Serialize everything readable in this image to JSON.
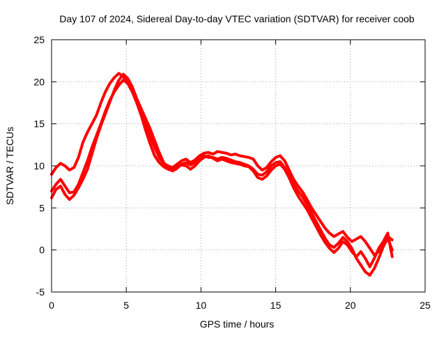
{
  "chart_data": {
    "type": "line",
    "title": "Day 107 of 2024, Sidereal Day-to-day VTEC variation (SDTVAR) for receiver coob",
    "xlabel": "GPS time / hours",
    "ylabel": "SDTVAR / TECUs",
    "xlim": [
      0,
      25
    ],
    "ylim": [
      -5,
      25
    ],
    "xticks": [
      0,
      5,
      10,
      15,
      20,
      25
    ],
    "yticks": [
      -5,
      0,
      5,
      10,
      15,
      20,
      25
    ],
    "xtick_labels": [
      "0",
      "5",
      "10",
      "15",
      "20",
      "25"
    ],
    "ytick_labels": [
      "-5",
      "0",
      "5",
      "10",
      "15",
      "20",
      "25"
    ],
    "grid": true,
    "legend": "none",
    "series_color": "#ff0000",
    "series": [
      {
        "name": "trace-1",
        "x": [
          0.0,
          0.3,
          0.6,
          0.9,
          1.2,
          1.5,
          1.8,
          2.1,
          2.4,
          2.7,
          3.0,
          3.3,
          3.6,
          3.9,
          4.2,
          4.5,
          4.8,
          5.1,
          5.4,
          5.7,
          6.0,
          6.3,
          6.6,
          6.9,
          7.2,
          7.5,
          7.8,
          8.1,
          8.4,
          8.7,
          9.0,
          9.3,
          9.6,
          9.9,
          10.2,
          10.5,
          10.8,
          11.1,
          11.4,
          11.7,
          12.0,
          12.3,
          12.6,
          12.9,
          13.2,
          13.5,
          13.8,
          14.1,
          14.4,
          14.7,
          15.0,
          15.3,
          15.6,
          15.9,
          16.2,
          16.5,
          16.8,
          17.1,
          17.4,
          17.7,
          18.0,
          18.3,
          18.6,
          18.9,
          19.2,
          19.5,
          19.8,
          20.1,
          20.4,
          20.7,
          21.0,
          21.3,
          21.6,
          21.9,
          22.2,
          22.5,
          22.8
        ],
        "y": [
          9.0,
          9.8,
          10.3,
          10.0,
          9.5,
          9.8,
          11.0,
          12.8,
          14.0,
          15.0,
          16.0,
          17.5,
          18.8,
          19.8,
          20.5,
          21.0,
          20.6,
          20.0,
          19.0,
          17.8,
          16.5,
          15.0,
          13.5,
          12.2,
          11.0,
          10.3,
          10.0,
          9.8,
          10.2,
          10.6,
          10.8,
          10.4,
          10.7,
          11.2,
          11.5,
          11.6,
          11.4,
          11.7,
          11.6,
          11.5,
          11.3,
          11.4,
          11.2,
          11.1,
          11.0,
          10.8,
          10.0,
          9.5,
          9.8,
          10.5,
          11.0,
          11.2,
          10.6,
          9.5,
          8.4,
          7.6,
          6.9,
          6.0,
          5.0,
          4.2,
          3.4,
          2.6,
          2.0,
          1.6,
          1.9,
          2.2,
          1.5,
          1.0,
          1.3,
          1.6,
          1.0,
          0.2,
          -0.6,
          -0.2,
          0.7,
          1.6,
          1.2
        ]
      },
      {
        "name": "trace-2",
        "x": [
          0.0,
          0.3,
          0.6,
          0.9,
          1.2,
          1.5,
          1.8,
          2.1,
          2.4,
          2.7,
          3.0,
          3.3,
          3.6,
          3.9,
          4.2,
          4.5,
          4.8,
          5.1,
          5.4,
          5.7,
          6.0,
          6.3,
          6.6,
          6.9,
          7.2,
          7.5,
          7.8,
          8.1,
          8.4,
          8.7,
          9.0,
          9.3,
          9.6,
          9.9,
          10.2,
          10.5,
          10.8,
          11.1,
          11.4,
          11.7,
          12.0,
          12.3,
          12.6,
          12.9,
          13.2,
          13.5,
          13.8,
          14.1,
          14.4,
          14.7,
          15.0,
          15.3,
          15.6,
          15.9,
          16.2,
          16.5,
          16.8,
          17.1,
          17.4,
          17.7,
          18.0,
          18.3,
          18.6,
          18.9,
          19.2,
          19.5,
          19.8,
          20.1,
          20.4,
          20.7,
          21.0,
          21.3,
          21.6,
          21.9,
          22.2,
          22.5,
          22.8
        ],
        "y": [
          7.0,
          7.8,
          8.4,
          7.6,
          6.8,
          6.9,
          7.8,
          9.2,
          10.6,
          12.2,
          13.6,
          15.0,
          16.5,
          17.8,
          18.8,
          19.6,
          20.2,
          19.8,
          18.8,
          17.5,
          16.0,
          14.2,
          12.6,
          11.2,
          10.4,
          9.9,
          9.6,
          9.4,
          9.7,
          10.2,
          10.4,
          10.1,
          10.4,
          10.8,
          11.2,
          11.0,
          11.0,
          10.8,
          11.0,
          10.9,
          10.7,
          10.5,
          10.4,
          10.2,
          10.0,
          9.6,
          9.0,
          8.9,
          9.3,
          10.0,
          10.4,
          10.5,
          9.8,
          8.8,
          7.8,
          7.0,
          6.3,
          5.4,
          4.4,
          3.4,
          2.4,
          1.4,
          0.6,
          0.3,
          0.8,
          1.5,
          1.0,
          0.2,
          -1.0,
          -1.8,
          -2.6,
          -3.0,
          -2.2,
          -1.0,
          0.4,
          1.4,
          0.0
        ]
      },
      {
        "name": "trace-3",
        "x": [
          0.0,
          0.3,
          0.6,
          0.9,
          1.2,
          1.5,
          1.8,
          2.1,
          2.4,
          2.7,
          3.0,
          3.3,
          3.6,
          3.9,
          4.2,
          4.5,
          4.8,
          5.1,
          5.4,
          5.7,
          6.0,
          6.3,
          6.6,
          6.9,
          7.2,
          7.5,
          7.8,
          8.1,
          8.4,
          8.7,
          9.0,
          9.3,
          9.6,
          9.9,
          10.2,
          10.5,
          10.8,
          11.1,
          11.4,
          11.7,
          12.0,
          12.3,
          12.6,
          12.9,
          13.2,
          13.5,
          13.8,
          14.1,
          14.4,
          14.7,
          15.0,
          15.3,
          15.6,
          15.9,
          16.2,
          16.5,
          16.8,
          17.1,
          17.4,
          17.7,
          18.0,
          18.3,
          18.6,
          18.9,
          19.2,
          19.5,
          19.8,
          20.1,
          20.4,
          20.7,
          21.0,
          21.3,
          21.6,
          21.9,
          22.2,
          22.5,
          22.8
        ],
        "y": [
          6.2,
          7.2,
          7.6,
          6.6,
          6.0,
          6.5,
          7.4,
          8.4,
          9.6,
          11.4,
          13.2,
          14.8,
          16.2,
          17.6,
          19.0,
          20.2,
          20.9,
          20.4,
          19.4,
          18.0,
          16.8,
          15.6,
          14.4,
          13.0,
          11.6,
          10.4,
          9.8,
          9.6,
          9.9,
          10.1,
          10.0,
          9.6,
          10.0,
          10.6,
          11.0,
          11.2,
          10.9,
          10.6,
          10.8,
          10.6,
          10.4,
          10.3,
          10.2,
          10.0,
          9.9,
          9.4,
          8.6,
          8.4,
          8.8,
          9.5,
          10.0,
          10.2,
          9.6,
          8.6,
          7.4,
          6.4,
          5.6,
          4.8,
          3.8,
          2.8,
          1.8,
          0.9,
          0.2,
          -0.3,
          0.2,
          1.0,
          0.6,
          -0.2,
          -0.8,
          -0.2,
          -1.0,
          -2.0,
          -1.0,
          0.2,
          1.0,
          2.0,
          -0.8
        ]
      }
    ]
  }
}
